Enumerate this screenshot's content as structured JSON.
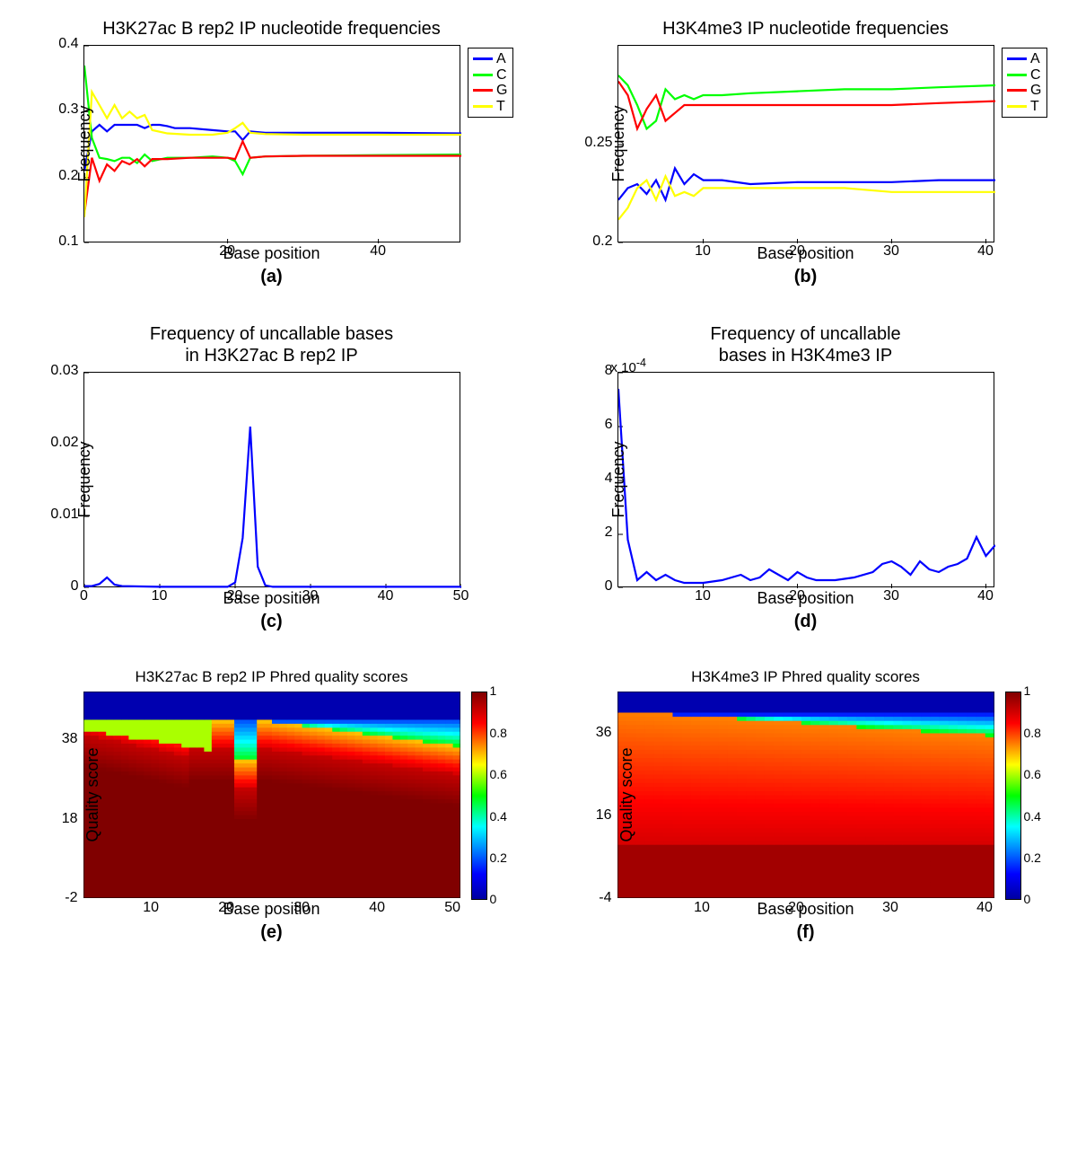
{
  "colors": {
    "A": "#0000ff",
    "C": "#00ff00",
    "G": "#ff0000",
    "T": "#ffff00",
    "line_blue": "#0000ff",
    "axis": "#000000",
    "bg": "#ffffff"
  },
  "font": {
    "family": "Helvetica, Arial, sans-serif",
    "title_size": 20,
    "label_size": 18,
    "tick_size": 16,
    "sublabel_size": 20
  },
  "panel_a": {
    "type": "line",
    "title": "H3K27ac B rep2 IP nucleotide frequencies",
    "xlabel": "Base position",
    "ylabel": "Frequency",
    "sub": "(a)",
    "xlim": [
      1,
      51
    ],
    "ylim": [
      0.1,
      0.4
    ],
    "xticks": [
      20,
      40
    ],
    "yticks": [
      0.1,
      0.2,
      0.3,
      0.4
    ],
    "legend": [
      "A",
      "C",
      "G",
      "T"
    ],
    "legend_pos": "top-right",
    "line_width": 2.2,
    "series": {
      "A": [
        [
          1,
          0.21
        ],
        [
          2,
          0.27
        ],
        [
          3,
          0.28
        ],
        [
          4,
          0.27
        ],
        [
          5,
          0.28
        ],
        [
          6,
          0.28
        ],
        [
          7,
          0.28
        ],
        [
          8,
          0.28
        ],
        [
          9,
          0.275
        ],
        [
          10,
          0.28
        ],
        [
          11,
          0.28
        ],
        [
          12,
          0.278
        ],
        [
          13,
          0.275
        ],
        [
          15,
          0.275
        ],
        [
          18,
          0.272
        ],
        [
          20,
          0.27
        ],
        [
          21,
          0.27
        ],
        [
          22,
          0.257
        ],
        [
          23,
          0.27
        ],
        [
          25,
          0.268
        ],
        [
          30,
          0.268
        ],
        [
          40,
          0.268
        ],
        [
          51,
          0.267
        ]
      ],
      "C": [
        [
          1,
          0.37
        ],
        [
          2,
          0.26
        ],
        [
          3,
          0.23
        ],
        [
          4,
          0.228
        ],
        [
          5,
          0.225
        ],
        [
          6,
          0.23
        ],
        [
          7,
          0.23
        ],
        [
          8,
          0.222
        ],
        [
          9,
          0.235
        ],
        [
          10,
          0.225
        ],
        [
          12,
          0.23
        ],
        [
          15,
          0.23
        ],
        [
          18,
          0.232
        ],
        [
          20,
          0.23
        ],
        [
          21,
          0.225
        ],
        [
          22,
          0.205
        ],
        [
          23,
          0.23
        ],
        [
          25,
          0.232
        ],
        [
          30,
          0.233
        ],
        [
          40,
          0.234
        ],
        [
          51,
          0.235
        ]
      ],
      "G": [
        [
          1,
          0.145
        ],
        [
          2,
          0.23
        ],
        [
          3,
          0.195
        ],
        [
          4,
          0.22
        ],
        [
          5,
          0.21
        ],
        [
          6,
          0.225
        ],
        [
          7,
          0.22
        ],
        [
          8,
          0.228
        ],
        [
          9,
          0.217
        ],
        [
          10,
          0.228
        ],
        [
          12,
          0.228
        ],
        [
          15,
          0.23
        ],
        [
          18,
          0.23
        ],
        [
          20,
          0.23
        ],
        [
          21,
          0.228
        ],
        [
          22,
          0.255
        ],
        [
          23,
          0.23
        ],
        [
          25,
          0.232
        ],
        [
          30,
          0.233
        ],
        [
          40,
          0.233
        ],
        [
          51,
          0.233
        ]
      ],
      "T": [
        [
          1,
          0.14
        ],
        [
          2,
          0.33
        ],
        [
          3,
          0.31
        ],
        [
          4,
          0.29
        ],
        [
          5,
          0.31
        ],
        [
          6,
          0.29
        ],
        [
          7,
          0.3
        ],
        [
          8,
          0.29
        ],
        [
          9,
          0.295
        ],
        [
          10,
          0.272
        ],
        [
          12,
          0.267
        ],
        [
          15,
          0.265
        ],
        [
          18,
          0.265
        ],
        [
          20,
          0.268
        ],
        [
          21,
          0.275
        ],
        [
          22,
          0.283
        ],
        [
          23,
          0.268
        ],
        [
          25,
          0.266
        ],
        [
          30,
          0.265
        ],
        [
          40,
          0.265
        ],
        [
          51,
          0.265
        ]
      ]
    }
  },
  "panel_b": {
    "type": "line",
    "title": "H3K4me3 IP nucleotide frequencies",
    "xlabel": "Base position",
    "ylabel": "Frequency",
    "sub": "(b)",
    "xlim": [
      1,
      41
    ],
    "ylim": [
      0.2,
      0.3
    ],
    "xticks": [
      10,
      20,
      30,
      40
    ],
    "yticks": [
      0.2,
      0.25
    ],
    "legend": [
      "A",
      "C",
      "G",
      "T"
    ],
    "legend_pos": "top-right",
    "line_width": 2.2,
    "series": {
      "A": [
        [
          1,
          0.222
        ],
        [
          2,
          0.228
        ],
        [
          3,
          0.23
        ],
        [
          4,
          0.225
        ],
        [
          5,
          0.232
        ],
        [
          6,
          0.222
        ],
        [
          7,
          0.238
        ],
        [
          8,
          0.23
        ],
        [
          9,
          0.235
        ],
        [
          10,
          0.232
        ],
        [
          12,
          0.232
        ],
        [
          15,
          0.23
        ],
        [
          20,
          0.231
        ],
        [
          25,
          0.231
        ],
        [
          30,
          0.231
        ],
        [
          35,
          0.232
        ],
        [
          41,
          0.232
        ]
      ],
      "C": [
        [
          1,
          0.285
        ],
        [
          2,
          0.28
        ],
        [
          3,
          0.27
        ],
        [
          4,
          0.258
        ],
        [
          5,
          0.262
        ],
        [
          6,
          0.278
        ],
        [
          7,
          0.273
        ],
        [
          8,
          0.275
        ],
        [
          9,
          0.273
        ],
        [
          10,
          0.275
        ],
        [
          12,
          0.275
        ],
        [
          15,
          0.276
        ],
        [
          20,
          0.277
        ],
        [
          25,
          0.278
        ],
        [
          30,
          0.278
        ],
        [
          35,
          0.279
        ],
        [
          41,
          0.28
        ]
      ],
      "G": [
        [
          1,
          0.282
        ],
        [
          2,
          0.275
        ],
        [
          3,
          0.258
        ],
        [
          4,
          0.268
        ],
        [
          5,
          0.275
        ],
        [
          6,
          0.262
        ],
        [
          7,
          0.266
        ],
        [
          8,
          0.27
        ],
        [
          9,
          0.27
        ],
        [
          10,
          0.27
        ],
        [
          12,
          0.27
        ],
        [
          15,
          0.27
        ],
        [
          20,
          0.27
        ],
        [
          25,
          0.27
        ],
        [
          30,
          0.27
        ],
        [
          35,
          0.271
        ],
        [
          41,
          0.272
        ]
      ],
      "T": [
        [
          1,
          0.212
        ],
        [
          2,
          0.218
        ],
        [
          3,
          0.228
        ],
        [
          4,
          0.232
        ],
        [
          5,
          0.222
        ],
        [
          6,
          0.234
        ],
        [
          7,
          0.224
        ],
        [
          8,
          0.226
        ],
        [
          9,
          0.224
        ],
        [
          10,
          0.228
        ],
        [
          12,
          0.228
        ],
        [
          15,
          0.228
        ],
        [
          20,
          0.228
        ],
        [
          25,
          0.228
        ],
        [
          30,
          0.226
        ],
        [
          35,
          0.226
        ],
        [
          41,
          0.226
        ]
      ]
    }
  },
  "panel_c": {
    "type": "line",
    "title_line1": "Frequency of uncallable bases",
    "title_line2": "in H3K27ac B rep2 IP",
    "xlabel": "Base position",
    "ylabel": "Frequency",
    "sub": "(c)",
    "xlim": [
      0,
      50
    ],
    "ylim": [
      0,
      0.03
    ],
    "xticks": [
      0,
      10,
      20,
      30,
      40,
      50
    ],
    "yticks": [
      0,
      0.01,
      0.02,
      0.03
    ],
    "line_color": "#0000ff",
    "line_width": 2.2,
    "data": [
      [
        0,
        0.0003
      ],
      [
        1,
        0.0003
      ],
      [
        2,
        0.0006
      ],
      [
        3,
        0.0015
      ],
      [
        4,
        0.0005
      ],
      [
        5,
        0.0003
      ],
      [
        10,
        0.0002
      ],
      [
        15,
        0.0002
      ],
      [
        19,
        0.0002
      ],
      [
        20,
        0.0008
      ],
      [
        21,
        0.007
      ],
      [
        22,
        0.0225
      ],
      [
        23,
        0.003
      ],
      [
        24,
        0.0004
      ],
      [
        25,
        0.0002
      ],
      [
        30,
        0.0002
      ],
      [
        40,
        0.0002
      ],
      [
        50,
        0.0002
      ]
    ]
  },
  "panel_d": {
    "type": "line",
    "title_line1": "Frequency of uncallable",
    "title_line2": "bases in H3K4me3 IP",
    "xlabel": "Base position",
    "ylabel": "Frequency",
    "sub": "(d)",
    "xlim": [
      1,
      41
    ],
    "ylim": [
      0,
      0.0008
    ],
    "xticks": [
      10,
      20,
      30,
      40
    ],
    "yticks": [
      0,
      2,
      4,
      6,
      8
    ],
    "ytick_exp_label": "x 10",
    "ytick_exp_sup": "-4",
    "line_color": "#0000ff",
    "line_width": 2.2,
    "data": [
      [
        1,
        0.00074
      ],
      [
        2,
        0.00018
      ],
      [
        3,
        3e-05
      ],
      [
        4,
        6e-05
      ],
      [
        5,
        3e-05
      ],
      [
        6,
        5e-05
      ],
      [
        7,
        3e-05
      ],
      [
        8,
        2e-05
      ],
      [
        9,
        2e-05
      ],
      [
        10,
        2e-05
      ],
      [
        12,
        3e-05
      ],
      [
        14,
        5e-05
      ],
      [
        15,
        3e-05
      ],
      [
        16,
        4e-05
      ],
      [
        17,
        7e-05
      ],
      [
        18,
        5e-05
      ],
      [
        19,
        3e-05
      ],
      [
        20,
        6e-05
      ],
      [
        21,
        4e-05
      ],
      [
        22,
        3e-05
      ],
      [
        24,
        3e-05
      ],
      [
        26,
        4e-05
      ],
      [
        28,
        6e-05
      ],
      [
        29,
        9e-05
      ],
      [
        30,
        0.0001
      ],
      [
        31,
        8e-05
      ],
      [
        32,
        5e-05
      ],
      [
        33,
        0.0001
      ],
      [
        34,
        7e-05
      ],
      [
        35,
        6e-05
      ],
      [
        36,
        8e-05
      ],
      [
        37,
        9e-05
      ],
      [
        38,
        0.00011
      ],
      [
        39,
        0.00019
      ],
      [
        40,
        0.00012
      ],
      [
        41,
        0.00016
      ]
    ]
  },
  "panel_e": {
    "type": "heatmap",
    "title": "H3K27ac B rep2 IP Phred quality scores",
    "xlabel": "Base position",
    "ylabel": "Quality score",
    "sub": "(e)",
    "xlim": [
      1,
      51
    ],
    "ylim": [
      -2,
      50
    ],
    "xticks": [
      10,
      20,
      30,
      40,
      50
    ],
    "yticks": [
      -2,
      18,
      38
    ],
    "colorbar_ticks": [
      0,
      0.2,
      0.4,
      0.6,
      0.8,
      1
    ],
    "colormap_stops": [
      [
        0,
        "#0000a0"
      ],
      [
        0.12,
        "#0000ff"
      ],
      [
        0.35,
        "#00ffff"
      ],
      [
        0.5,
        "#00ff00"
      ],
      [
        0.65,
        "#ffff00"
      ],
      [
        0.85,
        "#ff0000"
      ],
      [
        1,
        "#800000"
      ]
    ]
  },
  "panel_f": {
    "type": "heatmap",
    "title": "H3K4me3 IP Phred quality scores",
    "xlabel": "Base position",
    "ylabel": "Quality score",
    "sub": "(f)",
    "xlim": [
      1,
      41
    ],
    "ylim": [
      -4,
      46
    ],
    "xticks": [
      10,
      20,
      30,
      40
    ],
    "yticks": [
      -4,
      16,
      36
    ],
    "colorbar_ticks": [
      0,
      0.2,
      0.4,
      0.6,
      0.8,
      1
    ],
    "colormap_stops": [
      [
        0,
        "#0000a0"
      ],
      [
        0.12,
        "#0000ff"
      ],
      [
        0.35,
        "#00ffff"
      ],
      [
        0.5,
        "#00ff00"
      ],
      [
        0.65,
        "#ffff00"
      ],
      [
        0.85,
        "#ff0000"
      ],
      [
        1,
        "#800000"
      ]
    ]
  }
}
